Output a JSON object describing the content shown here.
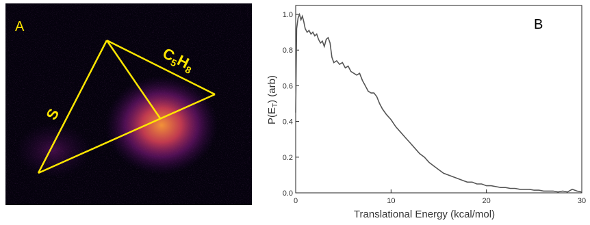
{
  "panel_a": {
    "label": "A",
    "label_color": "#ffe600",
    "line_color": "#ffe600",
    "species": [
      {
        "text": "S",
        "role": "atom-fragment"
      },
      {
        "text": "C",
        "sub": "5",
        "text2": "H",
        "sub2": "8",
        "role": "molecular-fragment"
      }
    ],
    "background_color": "#05020d",
    "spot_colors": [
      "#ff9a3a",
      "#e0445a",
      "#8a1a8a",
      "#3a0a5a"
    ]
  },
  "chart_data": {
    "type": "line",
    "panel_label": "B",
    "xlabel": "Translational Energy (kcal/mol)",
    "ylabel": "P(E",
    "ylabel_sub": "T",
    "ylabel_suffix": ") (arb)",
    "xlim": [
      0,
      30
    ],
    "ylim": [
      0,
      1.05
    ],
    "xticks": [
      0,
      10,
      20,
      30
    ],
    "yticks": [
      0.0,
      0.2,
      0.4,
      0.6,
      0.8,
      1.0
    ],
    "xtick_labels": [
      "0",
      "10",
      "20",
      "30"
    ],
    "ytick_labels": [
      "0.0",
      "0.2",
      "0.4",
      "0.6",
      "0.8",
      "1.0"
    ],
    "grid": false,
    "line_color": "#555555",
    "series": [
      {
        "x": [
          0.0,
          0.1,
          0.25,
          0.4,
          0.55,
          0.7,
          0.85,
          1.0,
          1.2,
          1.4,
          1.6,
          1.8,
          2.0,
          2.2,
          2.4,
          2.6,
          2.8,
          3.0,
          3.2,
          3.4,
          3.6,
          3.8,
          4.0,
          4.3,
          4.6,
          4.9,
          5.2,
          5.5,
          5.8,
          6.1,
          6.4,
          6.7,
          7.0,
          7.3,
          7.6,
          7.9,
          8.2,
          8.5,
          8.8,
          9.1,
          9.5,
          10.0,
          10.5,
          11.0,
          11.5,
          12.0,
          12.5,
          13.0,
          13.5,
          14.0,
          14.5,
          15.0,
          15.5,
          16.0,
          16.5,
          17.0,
          17.5,
          18.0,
          18.5,
          19.0,
          19.5,
          20.0,
          20.5,
          21.0,
          21.5,
          22.0,
          22.5,
          23.0,
          23.5,
          24.0,
          24.5,
          25.0,
          25.5,
          26.0,
          26.5,
          27.0,
          27.5,
          28.0,
          28.5,
          29.0,
          29.5,
          30.0
        ],
        "y": [
          0.45,
          0.92,
          0.98,
          1.0,
          0.97,
          0.99,
          0.96,
          0.92,
          0.9,
          0.91,
          0.89,
          0.9,
          0.88,
          0.89,
          0.86,
          0.84,
          0.85,
          0.82,
          0.86,
          0.87,
          0.84,
          0.76,
          0.73,
          0.74,
          0.72,
          0.73,
          0.7,
          0.71,
          0.68,
          0.67,
          0.66,
          0.67,
          0.63,
          0.6,
          0.57,
          0.56,
          0.56,
          0.54,
          0.5,
          0.47,
          0.44,
          0.41,
          0.37,
          0.34,
          0.31,
          0.28,
          0.25,
          0.22,
          0.2,
          0.17,
          0.15,
          0.13,
          0.11,
          0.1,
          0.09,
          0.08,
          0.07,
          0.06,
          0.06,
          0.05,
          0.05,
          0.04,
          0.04,
          0.035,
          0.03,
          0.03,
          0.025,
          0.025,
          0.02,
          0.02,
          0.02,
          0.015,
          0.015,
          0.01,
          0.01,
          0.01,
          0.005,
          0.01,
          0.005,
          0.02,
          0.01,
          0.005
        ]
      }
    ]
  }
}
